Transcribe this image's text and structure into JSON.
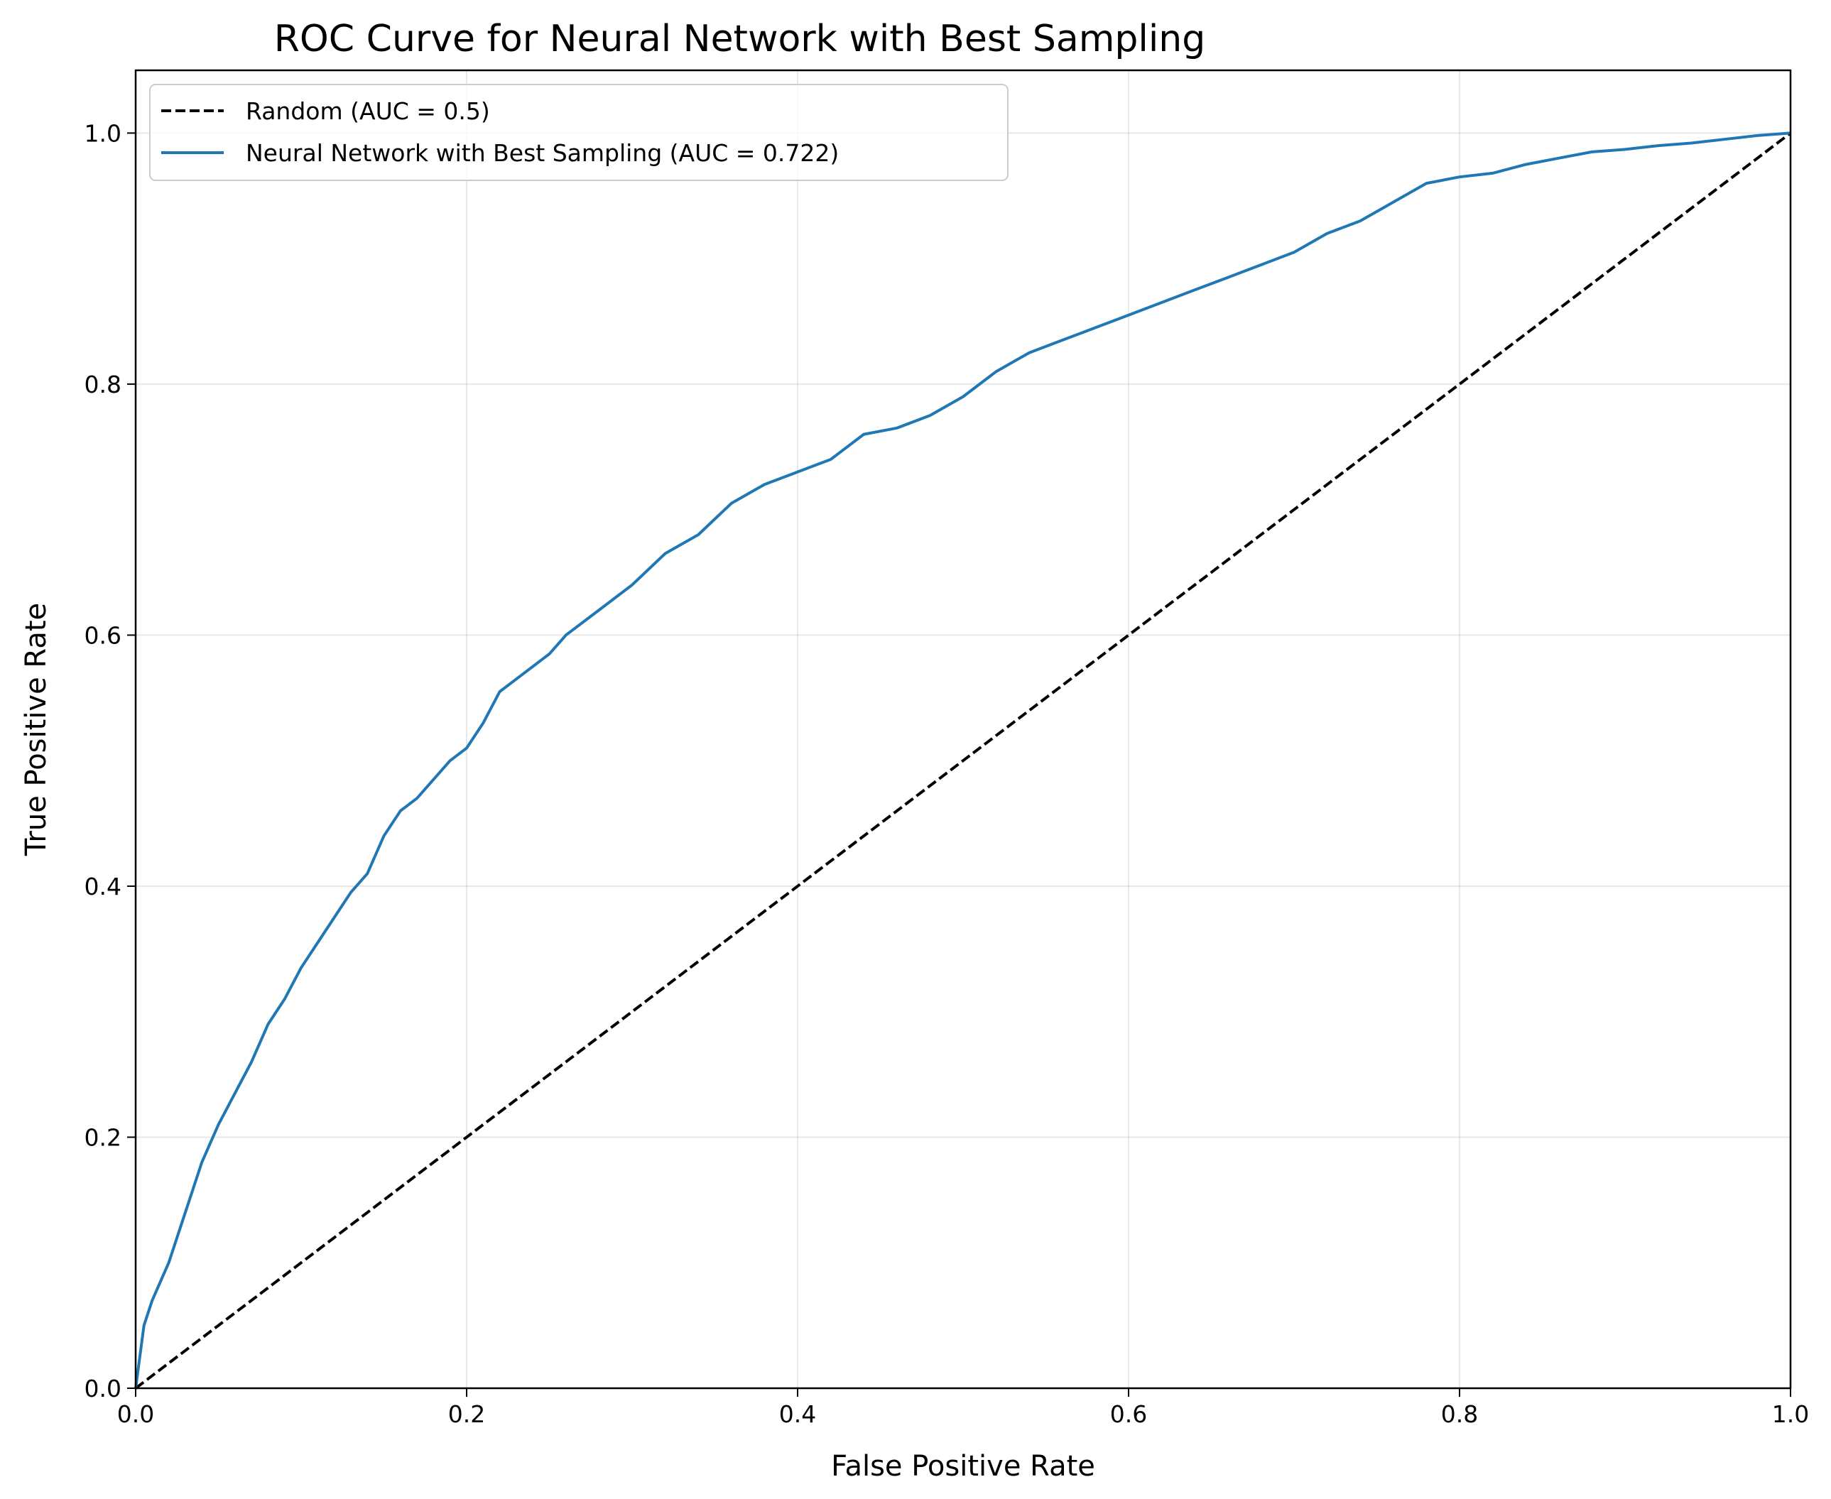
{
  "chart_data": {
    "type": "line",
    "title": "ROC Curve for Neural Network with Best Sampling",
    "xlabel": "False Positive Rate",
    "ylabel": "True Positive Rate",
    "xlim": [
      0.0,
      1.0
    ],
    "ylim": [
      0.0,
      1.05
    ],
    "xticks": [
      "0.0",
      "0.2",
      "0.4",
      "0.6",
      "0.8",
      "1.0"
    ],
    "yticks": [
      "0.0",
      "0.2",
      "0.4",
      "0.6",
      "0.8",
      "1.0"
    ],
    "grid": true,
    "legend_position": "upper-left",
    "series": [
      {
        "name": "Random (AUC = 0.5)",
        "style": "dashed",
        "color": "#000000",
        "x": [
          0.0,
          1.0
        ],
        "y": [
          0.0,
          1.0
        ]
      },
      {
        "name": "Neural Network with Best Sampling (AUC = 0.722)",
        "style": "solid",
        "color": "#1f77b4",
        "x": [
          0.0,
          0.005,
          0.01,
          0.02,
          0.03,
          0.04,
          0.05,
          0.06,
          0.07,
          0.08,
          0.09,
          0.1,
          0.11,
          0.12,
          0.13,
          0.14,
          0.15,
          0.16,
          0.17,
          0.18,
          0.19,
          0.2,
          0.21,
          0.22,
          0.23,
          0.24,
          0.25,
          0.26,
          0.28,
          0.3,
          0.32,
          0.34,
          0.36,
          0.38,
          0.4,
          0.42,
          0.44,
          0.46,
          0.48,
          0.5,
          0.52,
          0.54,
          0.56,
          0.58,
          0.6,
          0.62,
          0.64,
          0.66,
          0.68,
          0.7,
          0.72,
          0.74,
          0.76,
          0.78,
          0.8,
          0.82,
          0.84,
          0.86,
          0.88,
          0.9,
          0.92,
          0.94,
          0.96,
          0.98,
          1.0
        ],
        "y": [
          0.0,
          0.05,
          0.07,
          0.1,
          0.14,
          0.18,
          0.21,
          0.235,
          0.26,
          0.29,
          0.31,
          0.335,
          0.355,
          0.375,
          0.395,
          0.41,
          0.44,
          0.46,
          0.47,
          0.485,
          0.5,
          0.51,
          0.53,
          0.555,
          0.565,
          0.575,
          0.585,
          0.6,
          0.62,
          0.64,
          0.665,
          0.68,
          0.705,
          0.72,
          0.73,
          0.74,
          0.76,
          0.765,
          0.775,
          0.79,
          0.81,
          0.825,
          0.835,
          0.845,
          0.855,
          0.865,
          0.875,
          0.885,
          0.895,
          0.905,
          0.92,
          0.93,
          0.945,
          0.96,
          0.965,
          0.968,
          0.975,
          0.98,
          0.985,
          0.987,
          0.99,
          0.992,
          0.995,
          0.998,
          1.0
        ]
      }
    ]
  }
}
